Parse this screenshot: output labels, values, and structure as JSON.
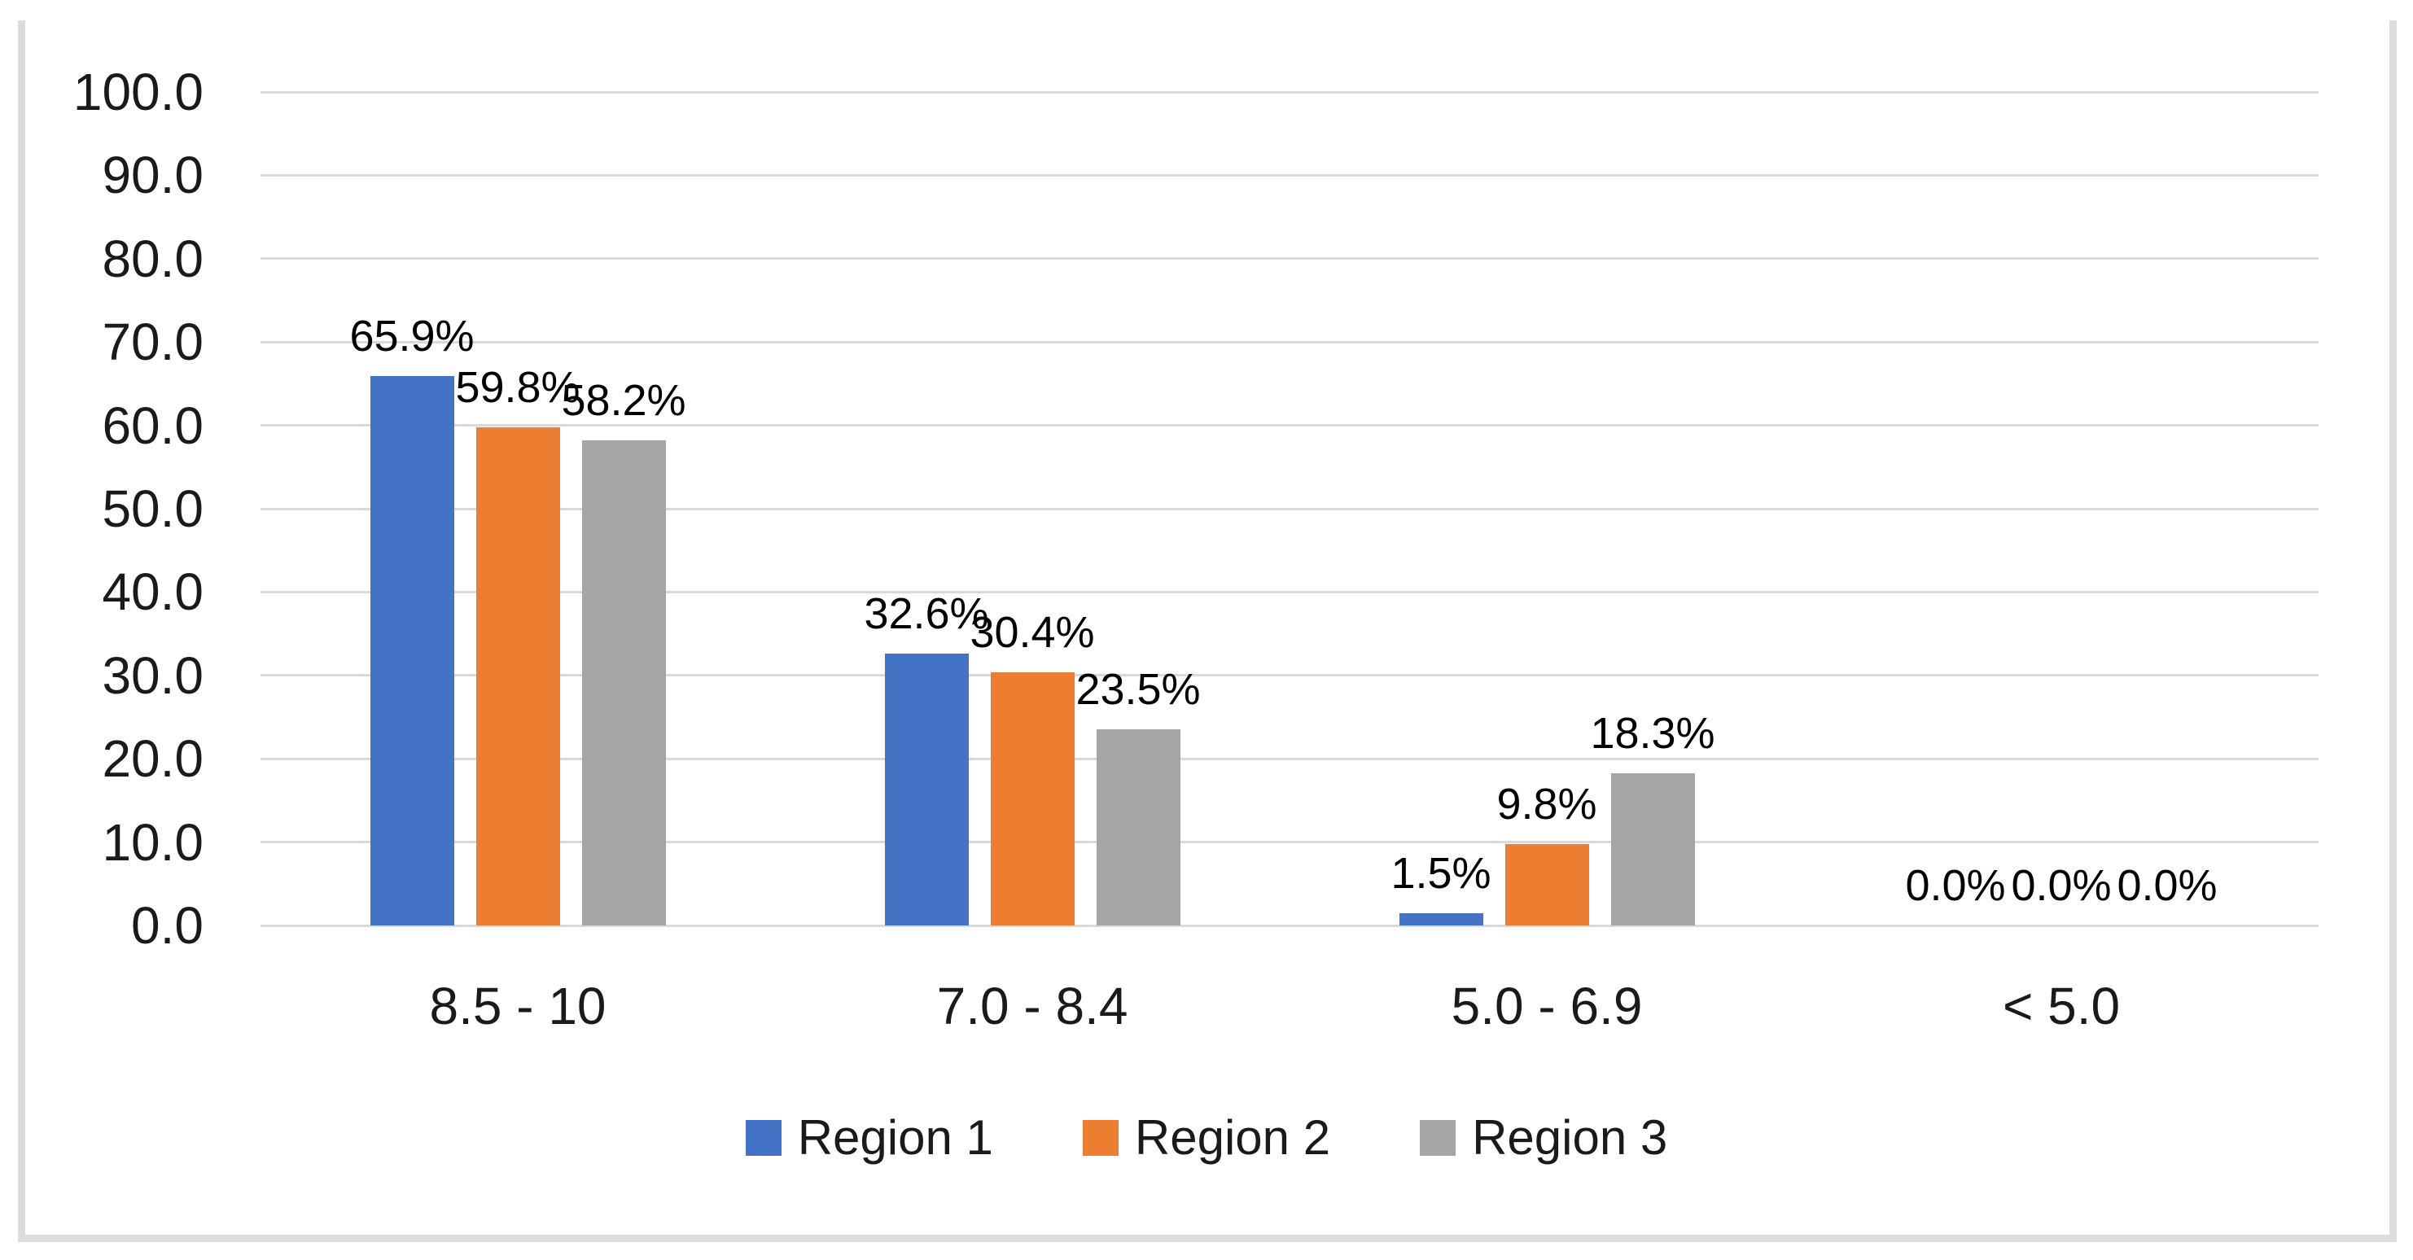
{
  "chart_data": {
    "type": "bar",
    "title": "",
    "xlabel": "",
    "ylabel": "",
    "categories": [
      "8.5 - 10",
      "7.0 - 8.4",
      "5.0 - 6.9",
      "< 5.0"
    ],
    "series": [
      {
        "name": "Region 1",
        "color": "#4472C4",
        "values": [
          65.9,
          32.6,
          1.5,
          0.0
        ],
        "labels": [
          "65.9%",
          "32.6%",
          "1.5%",
          "0.0%"
        ]
      },
      {
        "name": "Region 2",
        "color": "#ED7D31",
        "values": [
          59.8,
          30.4,
          9.8,
          0.0
        ],
        "labels": [
          "59.8%",
          "30.4%",
          "9.8%",
          "0.0%"
        ]
      },
      {
        "name": "Region 3",
        "color": "#A5A5A5",
        "values": [
          58.2,
          23.5,
          18.3,
          0.0
        ],
        "labels": [
          "58.2%",
          "23.5%",
          "18.3%",
          "0.0%"
        ]
      }
    ],
    "y_tick_labels": [
      "100.0",
      "90.0",
      "80.0",
      "70.0",
      "60.0",
      "50.0",
      "40.0",
      "30.0",
      "20.0",
      "10.0",
      "0.0"
    ],
    "ylim": [
      0,
      100
    ],
    "grid": true,
    "legend_position": "bottom",
    "colors": {
      "gridline": "#D9D9D9",
      "axis_text": "#1A1A1A",
      "data_label_text": "#000000",
      "frame_border": "#DCDCDC",
      "background": "#FFFFFF"
    }
  }
}
